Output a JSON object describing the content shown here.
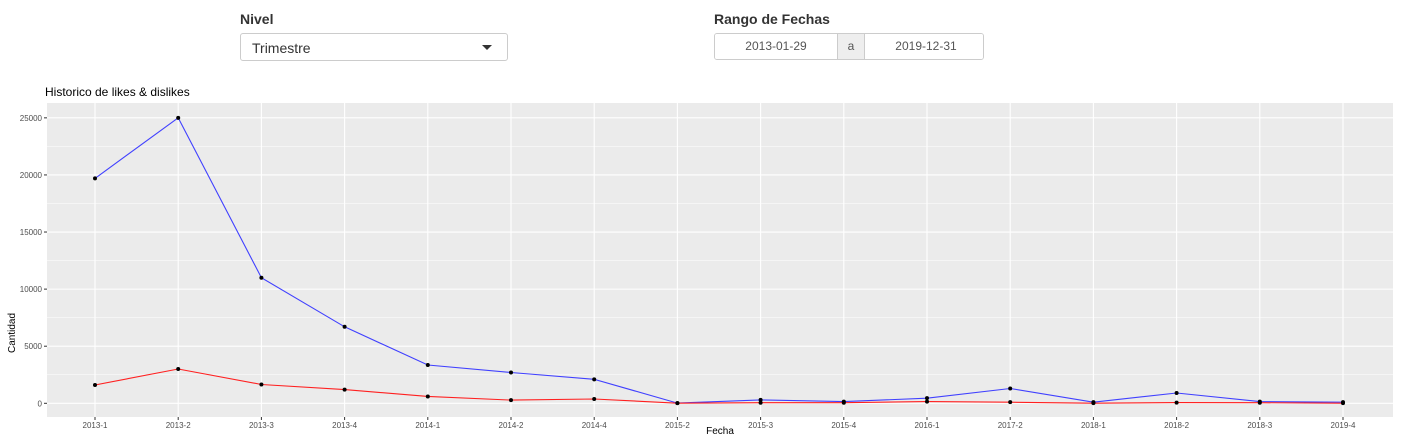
{
  "controls": {
    "nivel_label": "Nivel",
    "nivel_value": "Trimestre",
    "rango_label": "Rango de Fechas",
    "date_start": "2013-01-29",
    "date_sep": "a",
    "date_end": "2019-12-31"
  },
  "chart_data": {
    "type": "line",
    "title": "Historico de likes & dislikes",
    "xlabel": "Fecha",
    "ylabel": "Cantidad",
    "categories": [
      "2013-1",
      "2013-2",
      "2013-3",
      "2013-4",
      "2014-1",
      "2014-2",
      "2014-4",
      "2015-2",
      "2015-3",
      "2015-4",
      "2016-1",
      "2017-2",
      "2018-1",
      "2018-2",
      "2018-3",
      "2019-4"
    ],
    "ylim": [
      -1200,
      26300
    ],
    "yticks": [
      0,
      5000,
      10000,
      15000,
      20000,
      25000
    ],
    "grid": true,
    "series": [
      {
        "color": "#4040ff",
        "values": [
          19700,
          25000,
          11000,
          6700,
          3350,
          2700,
          2100,
          20,
          300,
          150,
          450,
          1300,
          100,
          900,
          150,
          100
        ]
      },
      {
        "color": "#ff2020",
        "values": [
          1600,
          3000,
          1650,
          1200,
          600,
          280,
          380,
          10,
          50,
          50,
          150,
          100,
          10,
          60,
          50,
          10
        ]
      }
    ],
    "point_color": "#000000",
    "panel_color": "#ebebeb"
  }
}
